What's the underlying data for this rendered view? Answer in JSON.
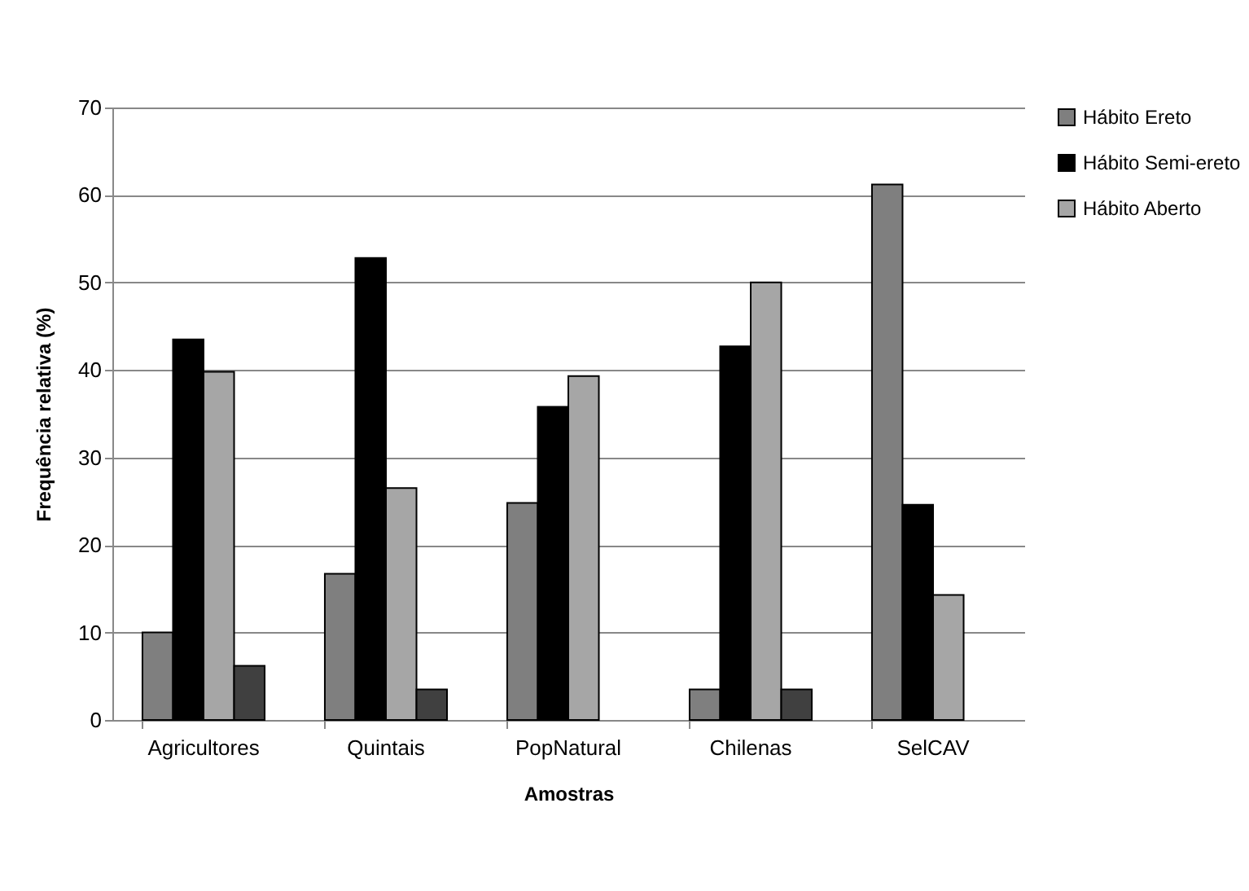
{
  "chart_data": {
    "type": "bar",
    "xlabel": "Amostras",
    "ylabel": "Frequência relativa (%)",
    "categories": [
      "Agricultores",
      "Quintais",
      "PopNatural",
      "Chilenas",
      "SelCAV"
    ],
    "series": [
      {
        "name": "Hábito Ereto",
        "color": "#7f7f7f",
        "values": [
          10,
          16.7,
          24.8,
          3.5,
          61.2
        ]
      },
      {
        "name": "Hábito Semi-ereto",
        "color": "#000000",
        "values": [
          43.5,
          52.8,
          35.8,
          42.7,
          24.6
        ]
      },
      {
        "name": "Hábito Aberto",
        "color": "#a6a6a6",
        "values": [
          39.8,
          26.5,
          39.3,
          50,
          14.3
        ]
      },
      {
        "color": "#404040",
        "values": [
          6.2,
          3.5,
          null,
          3.5,
          null
        ]
      }
    ],
    "ylim": [
      0,
      70
    ],
    "yticks": [
      0,
      10,
      20,
      30,
      40,
      50,
      60,
      70
    ],
    "grid": "y",
    "legend": "right"
  }
}
